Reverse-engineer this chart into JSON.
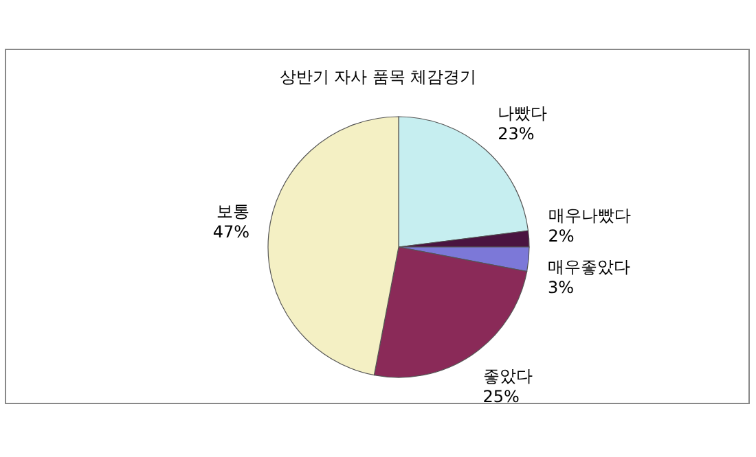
{
  "chart_data": {
    "type": "pie",
    "title": "상반기 자사 품목 체감경기",
    "categories": [
      "나빴다",
      "매우나빴다",
      "매우좋았다",
      "좋았다",
      "보통"
    ],
    "values": [
      23,
      2,
      3,
      25,
      47
    ],
    "colors": [
      "#c6eef0",
      "#4a1440",
      "#7c78d8",
      "#8a2a58",
      "#f4f0c4"
    ],
    "value_labels": [
      "23%",
      "2%",
      "3%",
      "25%",
      "47%"
    ],
    "legend": false
  }
}
